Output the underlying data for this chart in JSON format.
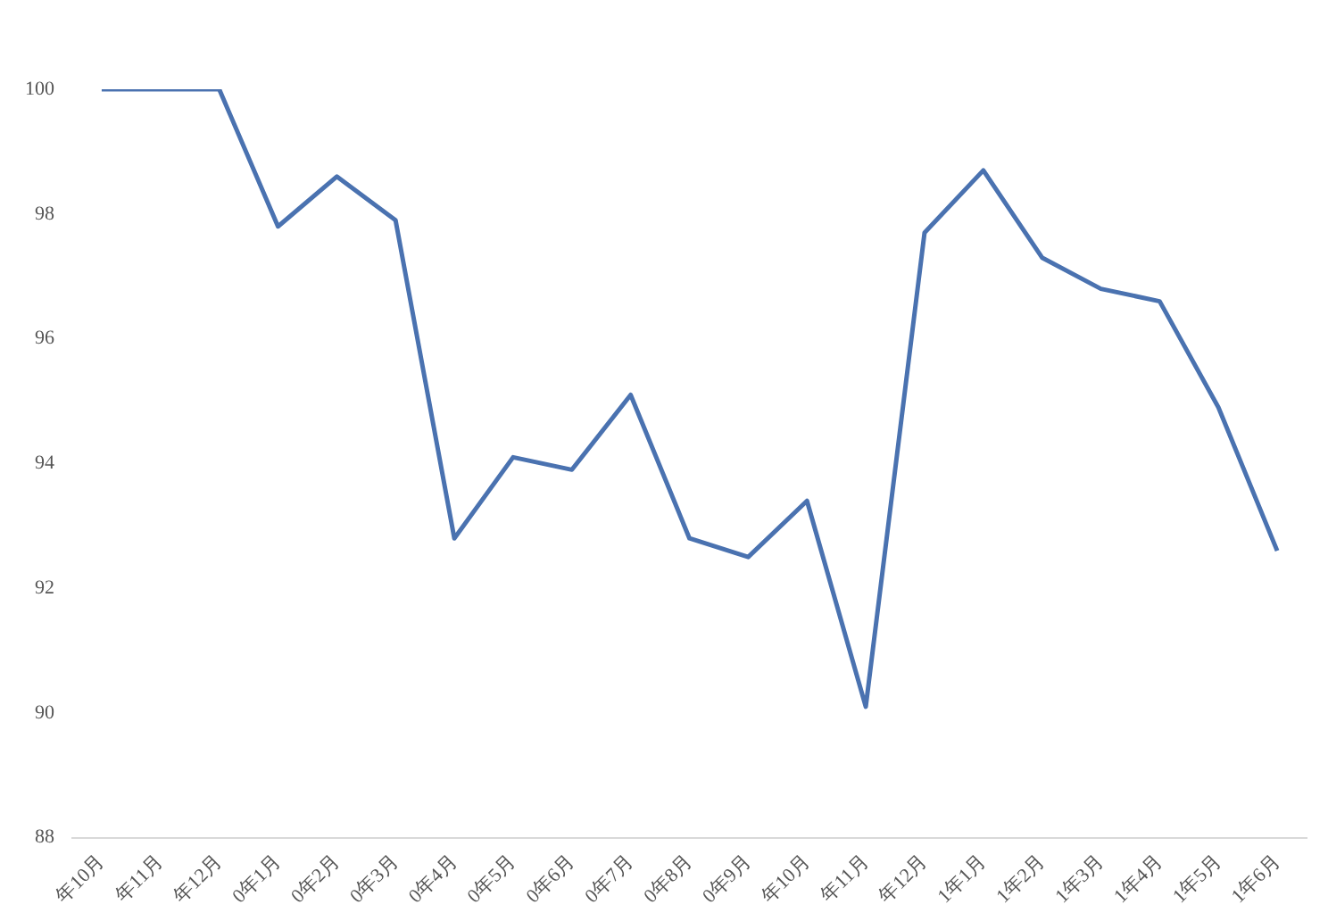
{
  "chart_data": {
    "type": "line",
    "categories": [
      "年10月",
      "年11月",
      "年12月",
      "0年1月",
      "0年2月",
      "0年3月",
      "0年4月",
      "0年5月",
      "0年6月",
      "0年7月",
      "0年8月",
      "0年9月",
      "年10月",
      "年11月",
      "年12月",
      "1年1月",
      "1年2月",
      "1年3月",
      "1年4月",
      "1年5月",
      "1年6月"
    ],
    "series": [
      {
        "color": "#4a72b0",
        "values": [
          100,
          100,
          100,
          97.8,
          98.6,
          97.9,
          92.8,
          94.1,
          93.9,
          95.1,
          92.8,
          92.5,
          93.4,
          90.1,
          97.7,
          98.7,
          97.3,
          96.8,
          96.6,
          94.9,
          92.6
        ]
      }
    ],
    "ylim": [
      88,
      100
    ],
    "yticks": [
      88,
      90,
      92,
      94,
      96,
      98,
      100
    ],
    "grid": false,
    "legend": false,
    "marker": "none",
    "line_style": "solid"
  }
}
